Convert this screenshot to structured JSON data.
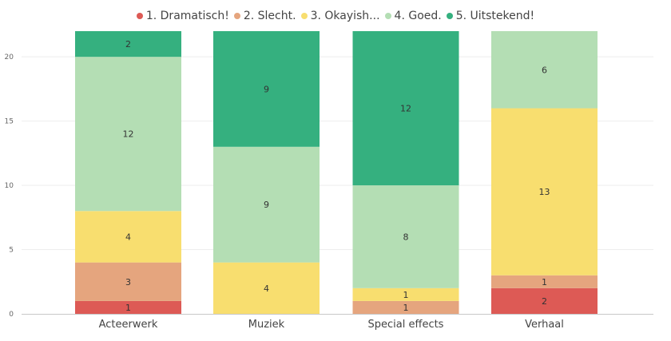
{
  "chart_data": {
    "type": "bar",
    "stacked": true,
    "categories": [
      "Acteerwerk",
      "Muziek",
      "Special effects",
      "Verhaal"
    ],
    "series": [
      {
        "name": "1. Dramatisch!",
        "color": "#dd5a55",
        "values": [
          1,
          0,
          0,
          2
        ]
      },
      {
        "name": "2. Slecht.",
        "color": "#e5a57e",
        "values": [
          3,
          0,
          1,
          1
        ]
      },
      {
        "name": "3. Okayish...",
        "color": "#f8de6f",
        "values": [
          4,
          4,
          1,
          13
        ]
      },
      {
        "name": "4. Goed.",
        "color": "#b4deb4",
        "values": [
          12,
          9,
          8,
          6
        ]
      },
      {
        "name": "5. Uitstekend!",
        "color": "#35b07f",
        "values": [
          2,
          9,
          12,
          0
        ]
      }
    ],
    "yticks": [
      0,
      5,
      10,
      15,
      20
    ],
    "ylim": [
      0,
      22
    ],
    "grid": true,
    "legend_position": "top-center"
  }
}
